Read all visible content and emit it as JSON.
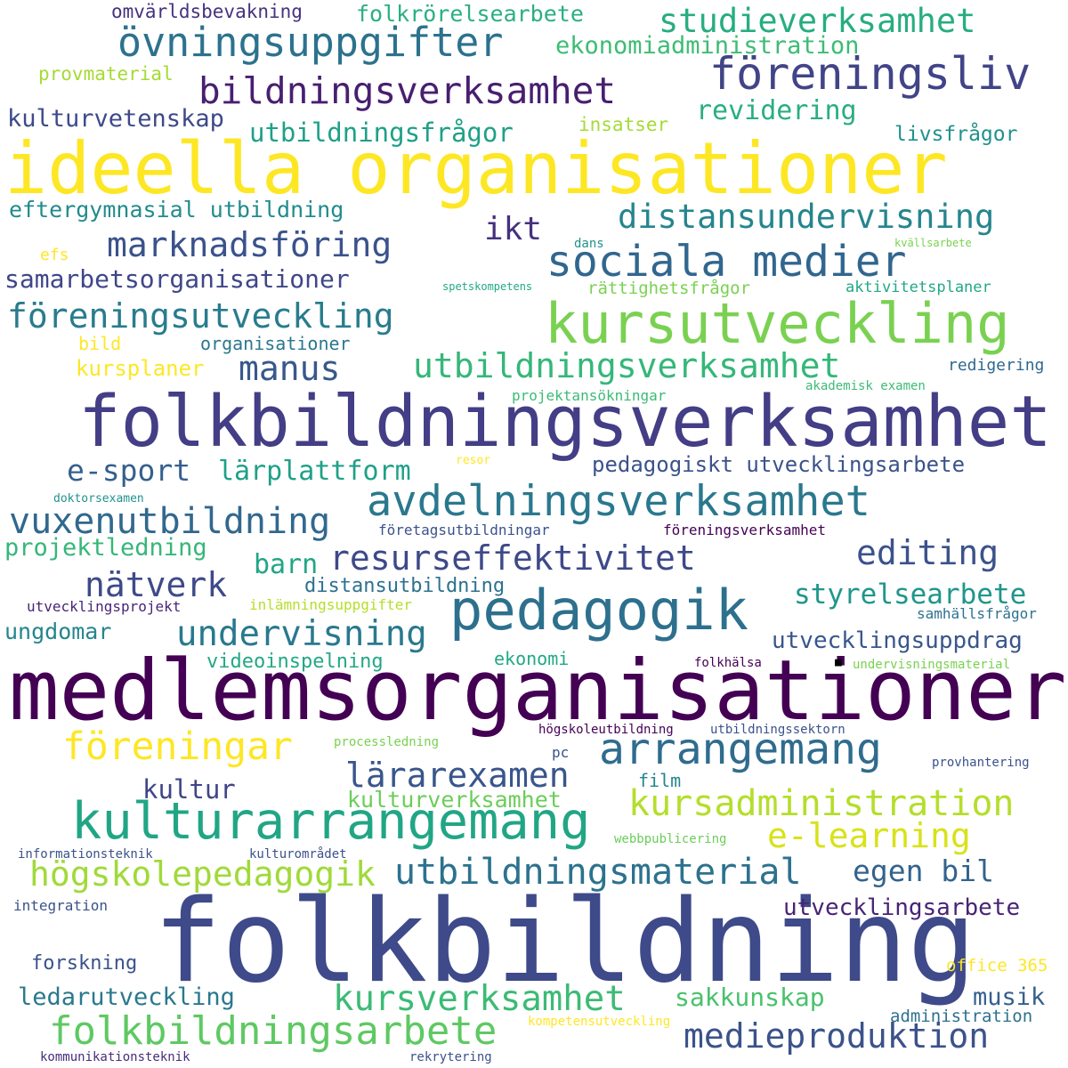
{
  "words": [
    {
      "text": "folkbildning",
      "color": "#3e4a89"
    },
    {
      "text": "medlemsorganisationer",
      "color": "#440154"
    },
    {
      "text": "folkbildningsverksamhet",
      "color": "#433e85"
    },
    {
      "text": "ideella organisationer",
      "color": "#fde725"
    },
    {
      "text": "pedagogik",
      "color": "#2d708e"
    },
    {
      "text": "kulturarrangemang",
      "color": "#21a685"
    },
    {
      "text": "kursutveckling",
      "color": "#7ad151"
    },
    {
      "text": "sociala medier",
      "color": "#31668e"
    },
    {
      "text": "avdelningsverksamhet",
      "color": "#2a788e"
    },
    {
      "text": "föreningsliv",
      "color": "#414487"
    },
    {
      "text": "övningsuppgifter",
      "color": "#2c728e"
    },
    {
      "text": "bildningsverksamhet",
      "color": "#481f70"
    },
    {
      "text": "arrangemang",
      "color": "#2f6c8e"
    },
    {
      "text": "folkbildningsarbete",
      "color": "#5ec962"
    },
    {
      "text": "medieproduktion",
      "color": "#3b528b"
    },
    {
      "text": "kursverksamhet",
      "color": "#3cbb75"
    },
    {
      "text": "utbildningsverksamhet",
      "color": "#35b779"
    },
    {
      "text": "resurseffektivitet",
      "color": "#3e4989"
    },
    {
      "text": "vuxenutbildning",
      "color": "#31688e"
    },
    {
      "text": "marknadsföring",
      "color": "#3b528b"
    },
    {
      "text": "föreningsutveckling",
      "color": "#287c8e"
    },
    {
      "text": "utbildningsmaterial",
      "color": "#2c728e"
    },
    {
      "text": "kursadministration",
      "color": "#b5de2b"
    },
    {
      "text": "distansundervisning",
      "color": "#25858e"
    },
    {
      "text": "högskolepedagogik",
      "color": "#a0da39"
    },
    {
      "text": "föreningar",
      "color": "#fde725"
    },
    {
      "text": "undervisning",
      "color": "#29798e"
    },
    {
      "text": "studieverksamhet",
      "color": "#27ad81"
    },
    {
      "text": "lärarexamen",
      "color": "#39568c"
    },
    {
      "text": "e-learning",
      "color": "#d8e219"
    },
    {
      "text": "nätverk",
      "color": "#3e4a89"
    },
    {
      "text": "manus",
      "color": "#38588c"
    },
    {
      "text": "editing",
      "color": "#3b528b"
    },
    {
      "text": "e-sport",
      "color": "#355f8d"
    },
    {
      "text": "lärplattform",
      "color": "#1fa088"
    },
    {
      "text": "styrelsearbete",
      "color": "#1f968b"
    },
    {
      "text": "utbildningsfrågor",
      "color": "#1fa088"
    },
    {
      "text": "egen bil",
      "color": "#33638d"
    },
    {
      "text": "pedagogiskt utvecklingsarbete",
      "color": "#3b528b"
    },
    {
      "text": "kulturverksamhet",
      "color": "#6ccd5a"
    },
    {
      "text": "eftergymnasial utbildning",
      "color": "#228b8d"
    },
    {
      "text": "samarbetsorganisationer",
      "color": "#404688"
    },
    {
      "text": "revidering",
      "color": "#29af7f"
    },
    {
      "text": "ikt",
      "color": "#46307e"
    },
    {
      "text": "kulturvetenskap",
      "color": "#3e4989"
    },
    {
      "text": "ekonomiadministration",
      "color": "#3dbc74"
    },
    {
      "text": "folkrörelsearbete",
      "color": "#2ab07f"
    },
    {
      "text": "omvärldsbevakning",
      "color": "#46327e"
    },
    {
      "text": "utvecklingsuppdrag",
      "color": "#39568c"
    },
    {
      "text": "utvecklingsarbete",
      "color": "#482475"
    },
    {
      "text": "kultur",
      "color": "#404588"
    },
    {
      "text": "kursplaner",
      "color": "#fde725"
    },
    {
      "text": "projektledning",
      "color": "#35b779"
    },
    {
      "text": "barn",
      "color": "#21a685"
    },
    {
      "text": "distansutbildning",
      "color": "#2c728e"
    },
    {
      "text": "ungdomar",
      "color": "#25858e"
    },
    {
      "text": "videoinspelning",
      "color": "#22a884"
    },
    {
      "text": "ledarutveckling",
      "color": "#2a788e"
    },
    {
      "text": "sakkunskap",
      "color": "#4ac16d"
    },
    {
      "text": "musik",
      "color": "#355f8d"
    },
    {
      "text": "forskning",
      "color": "#3b528b"
    },
    {
      "text": "livsfrågor",
      "color": "#21918c"
    },
    {
      "text": "insatser",
      "color": "#a5db36"
    },
    {
      "text": "provmaterial",
      "color": "#a5db36"
    },
    {
      "text": "organisationer",
      "color": "#2a788e"
    },
    {
      "text": "rättighetsfrågor",
      "color": "#7ad151"
    },
    {
      "text": "aktivitetsplaner",
      "color": "#22a884"
    },
    {
      "text": "redigering",
      "color": "#31688e"
    },
    {
      "text": "projektansökningar",
      "color": "#3cbb75"
    },
    {
      "text": "akademisk examen",
      "color": "#3dbc74"
    },
    {
      "text": "ekonomi",
      "color": "#22a884"
    },
    {
      "text": "film",
      "color": "#24868e"
    },
    {
      "text": "administration",
      "color": "#2d708e"
    },
    {
      "text": "office 365",
      "color": "#fde725"
    },
    {
      "text": "inlämningsuppgifter",
      "color": "#b5de2b"
    },
    {
      "text": "utvecklingsprojekt",
      "color": "#482677"
    },
    {
      "text": "samhällsfrågor",
      "color": "#2c728e"
    },
    {
      "text": "föreningsverksamhet",
      "color": "#440154"
    },
    {
      "text": "företagsutbildningar",
      "color": "#3b528b"
    },
    {
      "text": "integration",
      "color": "#3b528b"
    },
    {
      "text": "informationsteknik",
      "color": "#3b528b"
    },
    {
      "text": "kulturområdet",
      "color": "#3b528b"
    },
    {
      "text": "webbpublicering",
      "color": "#6ccd5a"
    },
    {
      "text": "provhantering",
      "color": "#3b528b"
    },
    {
      "text": "pc",
      "color": "#3b528b"
    },
    {
      "text": "högskoleutbildning",
      "color": "#440154"
    },
    {
      "text": "utbildningssektorn",
      "color": "#3b528b"
    },
    {
      "text": "processledning",
      "color": "#7ad151"
    },
    {
      "text": "folkhälsa",
      "color": "#440154"
    },
    {
      "text": "undervisningsmaterial",
      "color": "#7ad151"
    },
    {
      "text": "kommunikationsteknik",
      "color": "#472d7b"
    },
    {
      "text": "rekrytering",
      "color": "#3b528b"
    },
    {
      "text": "kompetensutveckling",
      "color": "#fde725"
    },
    {
      "text": "efs",
      "color": "#fde725"
    },
    {
      "text": "dans",
      "color": "#21918c"
    },
    {
      "text": "kvällsarbete",
      "color": "#7ad151"
    },
    {
      "text": "spetskompetens",
      "color": "#22a884"
    },
    {
      "text": "bild",
      "color": "#fde725"
    },
    {
      "text": "resor",
      "color": "#fde725"
    },
    {
      "text": "doktorsexamen",
      "color": "#21918c"
    }
  ]
}
